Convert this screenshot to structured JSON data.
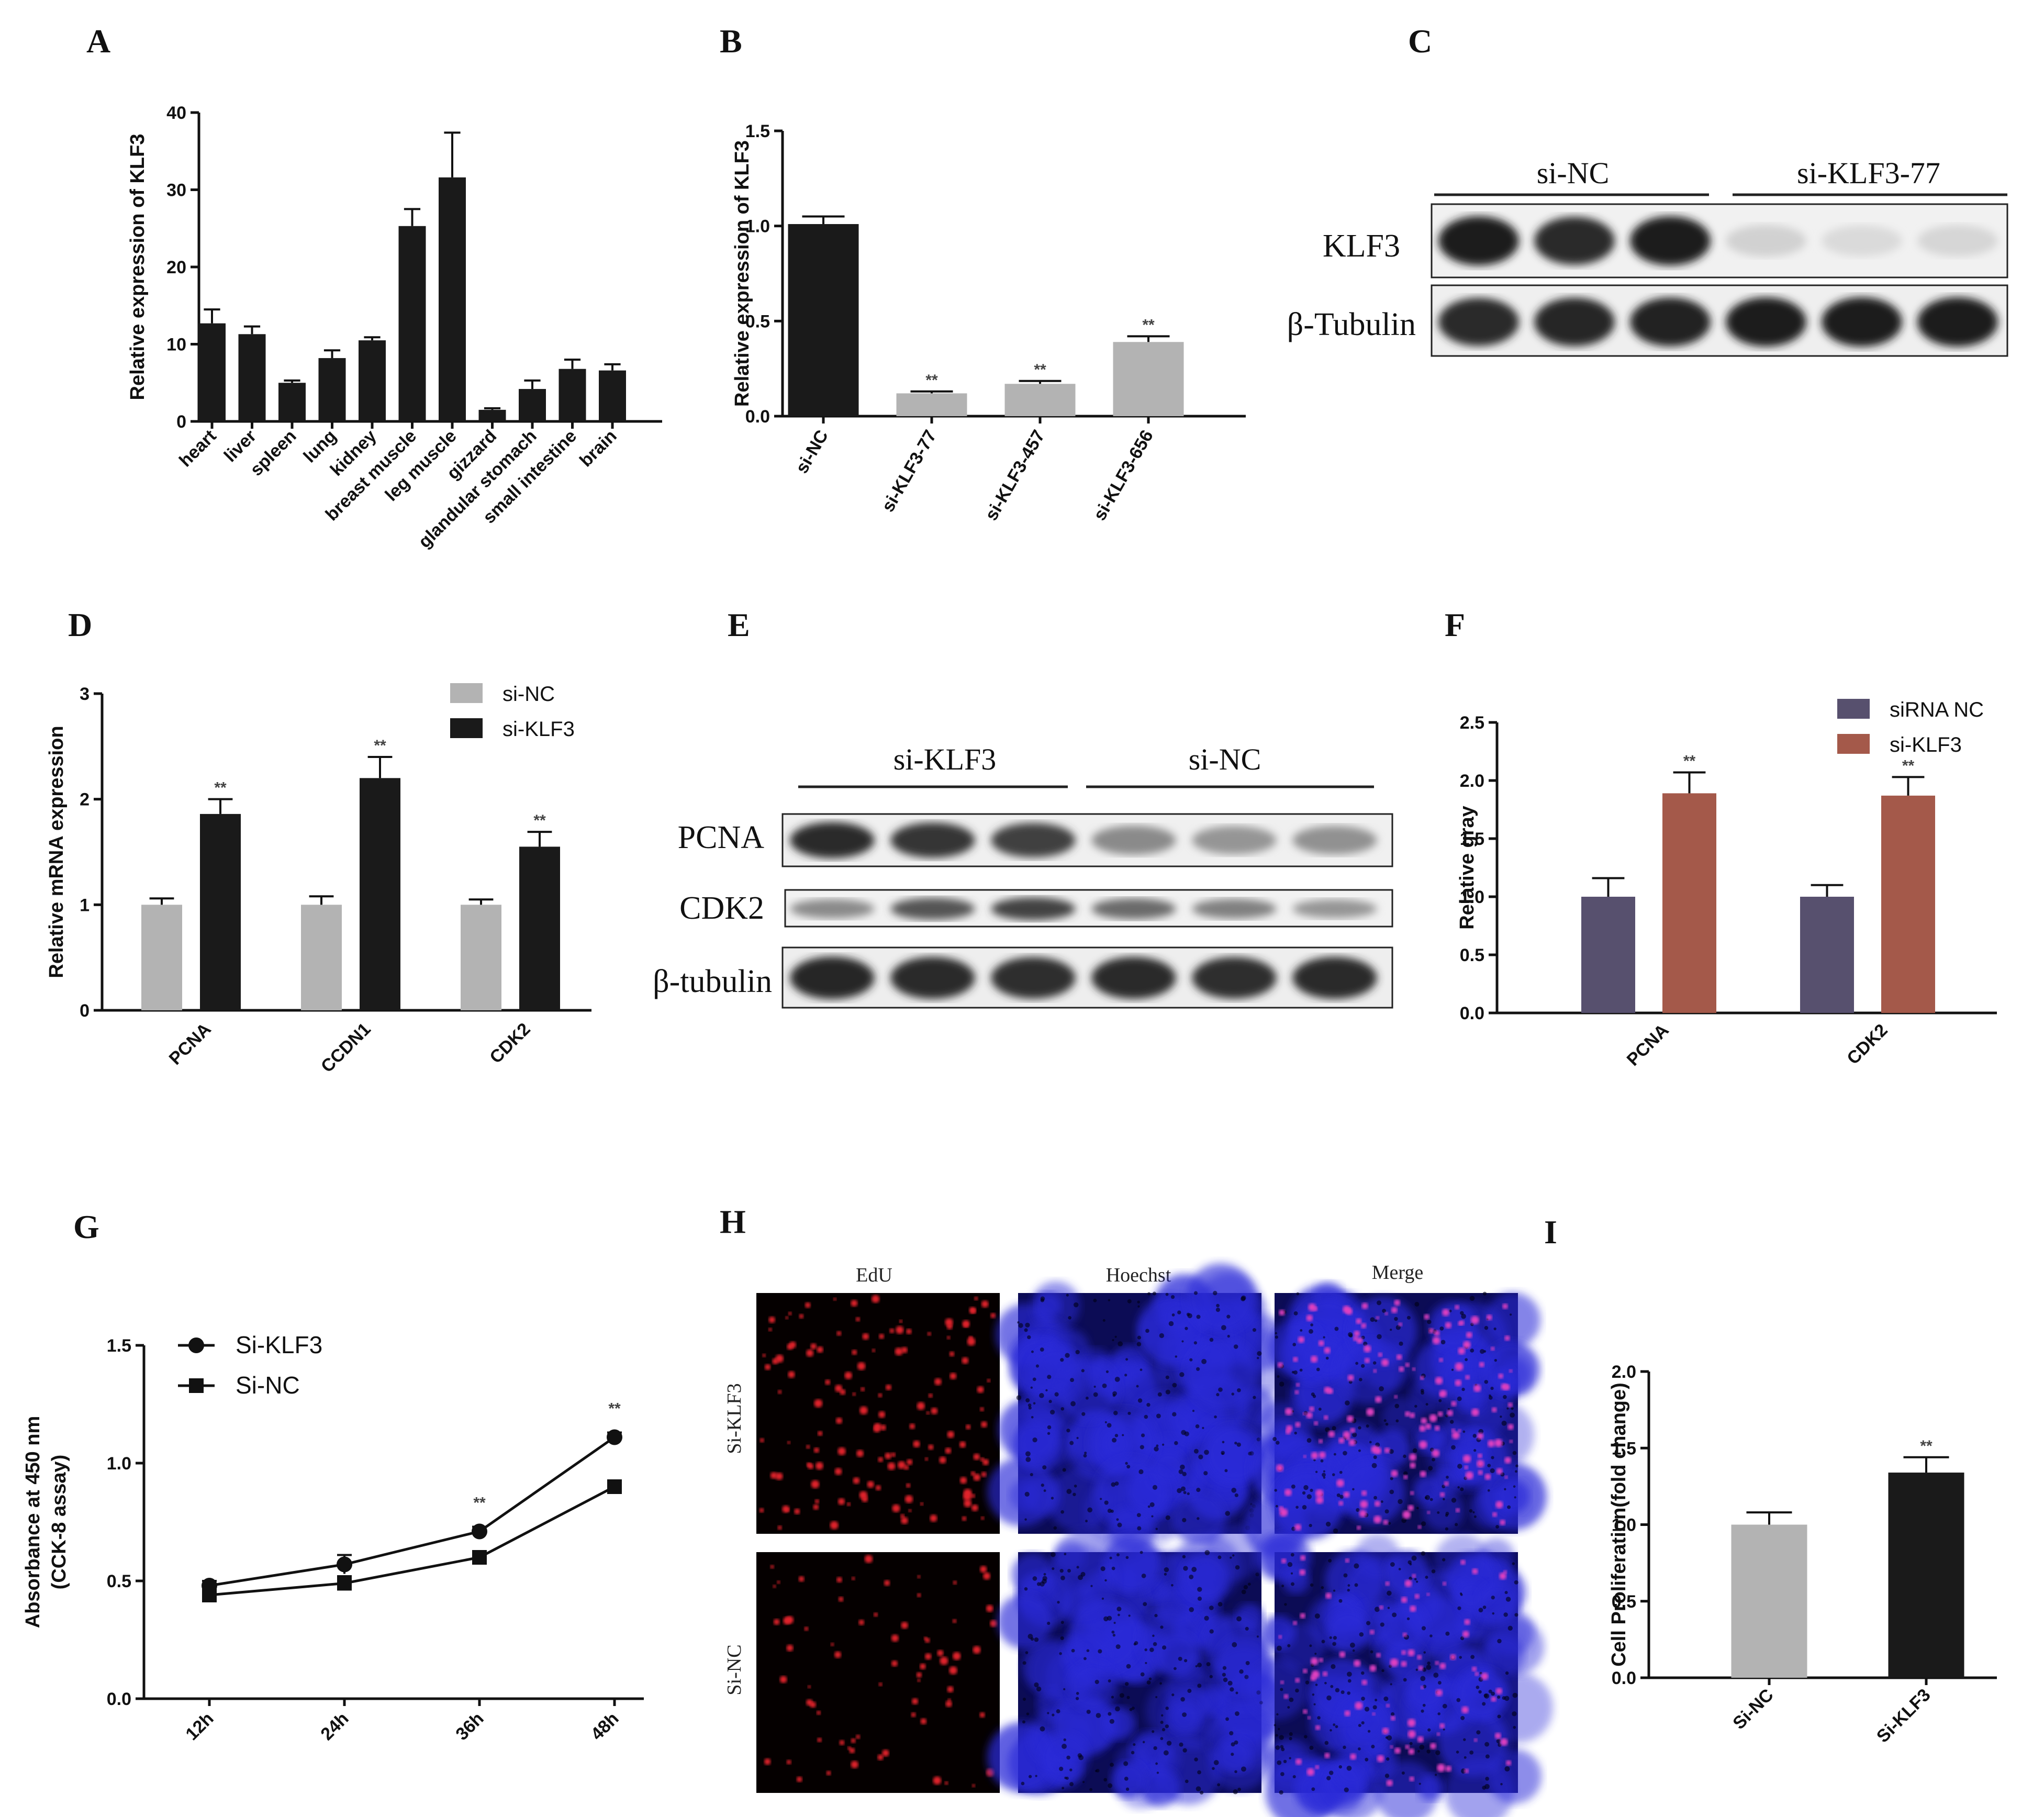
{
  "panels": {
    "A": "A",
    "B": "B",
    "C": "C",
    "D": "D",
    "E": "E",
    "F": "F",
    "G": "G",
    "H": "H",
    "I": "I"
  },
  "chart_data": [
    {
      "id": "A",
      "type": "bar",
      "ylabel": "Relative expression of KLF3",
      "ylim": [
        0,
        40
      ],
      "yticks": [
        "0",
        "10",
        "20",
        "30",
        "40"
      ],
      "categories": [
        "heart",
        "liver",
        "spleen",
        "lung",
        "kidney",
        "breast muscle",
        "leg muscle",
        "gizzard",
        "glandular stomach",
        "small intestine",
        "brain"
      ],
      "values": [
        12.7,
        11.3,
        5.0,
        8.2,
        10.5,
        25.3,
        31.6,
        1.5,
        4.2,
        6.8,
        6.6
      ],
      "errors": [
        1.8,
        1.0,
        0.3,
        1.0,
        0.4,
        2.2,
        5.8,
        0.2,
        1.1,
        1.2,
        0.8
      ],
      "color": "#1a1a1a"
    },
    {
      "id": "B",
      "type": "bar",
      "ylabel": "Relative expression of KLF3",
      "ylim": [
        0,
        1.5
      ],
      "yticks": [
        "0.0",
        "0.5",
        "1.0",
        "1.5"
      ],
      "categories": [
        "si-NC",
        "si-KLF3-77",
        "si-KLF3-457",
        "si-KLF3-656"
      ],
      "values": [
        1.01,
        0.12,
        0.17,
        0.39
      ],
      "errors": [
        0.04,
        0.01,
        0.015,
        0.03
      ],
      "sig": [
        "",
        "**",
        "**",
        "**"
      ],
      "colors": [
        "#1a1a1a",
        "#b3b3b3",
        "#b3b3b3",
        "#b3b3b3"
      ]
    },
    {
      "id": "D",
      "type": "bar",
      "ylabel": "Relative mRNA expression",
      "ylim": [
        0,
        3
      ],
      "yticks": [
        "0",
        "1",
        "2",
        "3"
      ],
      "categories": [
        "PCNA",
        "CCDN1",
        "CDK2"
      ],
      "legend_position": "top-right",
      "series": [
        {
          "name": "si-NC",
          "color": "#b3b3b3",
          "values": [
            1.0,
            1.0,
            1.0
          ],
          "errors": [
            0.06,
            0.08,
            0.05
          ],
          "sig": [
            "",
            "",
            ""
          ]
        },
        {
          "name": "si-KLF3",
          "color": "#1a1a1a",
          "values": [
            1.86,
            2.2,
            1.55
          ],
          "errors": [
            0.14,
            0.2,
            0.14
          ],
          "sig": [
            "**",
            "**",
            "**"
          ]
        }
      ]
    },
    {
      "id": "F",
      "type": "bar",
      "ylabel": "Relative gray",
      "ylim": [
        0,
        2.5
      ],
      "yticks": [
        "0.0",
        "0.5",
        "1.0",
        "1.5",
        "2.0",
        "2.5"
      ],
      "categories": [
        "PCNA",
        "CDK2"
      ],
      "legend_position": "top-right",
      "series": [
        {
          "name": "siRNA NC",
          "color": "#57506e",
          "values": [
            1.0,
            1.0
          ],
          "errors": [
            0.16,
            0.1
          ],
          "sig": [
            "",
            ""
          ]
        },
        {
          "name": "si-KLF3",
          "color": "#a4594a",
          "values": [
            1.89,
            1.87
          ],
          "errors": [
            0.18,
            0.16
          ],
          "sig": [
            "**",
            "**"
          ]
        }
      ]
    },
    {
      "id": "G",
      "type": "line",
      "ylabel": "Absorbance at 450 nm",
      "ylabel2": "(CCK-8 assay)",
      "ylim": [
        0,
        1.5
      ],
      "yticks": [
        "0.0",
        "0.5",
        "1.0",
        "1.5"
      ],
      "categories": [
        "12h",
        "24h",
        "36h",
        "48h"
      ],
      "legend_position": "top-left",
      "series": [
        {
          "name": "Si-KLF3",
          "marker": "circle",
          "values": [
            0.48,
            0.57,
            0.71,
            1.11
          ],
          "errors": [
            0.02,
            0.04,
            0.02,
            0.02
          ],
          "sig": [
            "",
            "",
            "**",
            "**"
          ]
        },
        {
          "name": "Si-NC",
          "marker": "square",
          "values": [
            0.44,
            0.49,
            0.6,
            0.9
          ],
          "errors": [
            0.02,
            0.03,
            0.02,
            0.02
          ],
          "sig": [
            "",
            "",
            "",
            ""
          ]
        }
      ]
    },
    {
      "id": "I",
      "type": "bar",
      "ylabel": "Cell Proliferation(fold change)",
      "ylim": [
        0,
        2.0
      ],
      "yticks": [
        "0.0",
        "0.5",
        "1.0",
        "1.5",
        "2.0"
      ],
      "categories": [
        "Si-NC",
        "Si-KLF3"
      ],
      "values": [
        1.0,
        1.34
      ],
      "errors": [
        0.08,
        0.1
      ],
      "sig": [
        "",
        "**"
      ],
      "colors": [
        "#b3b3b3",
        "#1a1a1a"
      ]
    }
  ],
  "blots": {
    "C": {
      "groups": [
        "si-NC",
        "si-KLF3-77"
      ],
      "rows": [
        "KLF3",
        "β-Tubulin"
      ],
      "intensity": [
        [
          0.95,
          0.9,
          0.95,
          0.12,
          0.08,
          0.1
        ],
        [
          0.9,
          0.92,
          0.93,
          0.95,
          0.96,
          0.96
        ]
      ]
    },
    "E": {
      "groups": [
        "si-KLF3",
        "si-NC"
      ],
      "rows": [
        "PCNA",
        "CDK2",
        "β-tubulin"
      ],
      "intensity": [
        [
          0.9,
          0.85,
          0.8,
          0.45,
          0.4,
          0.42
        ],
        [
          0.45,
          0.7,
          0.78,
          0.6,
          0.5,
          0.4
        ],
        [
          0.92,
          0.9,
          0.88,
          0.9,
          0.88,
          0.9
        ]
      ]
    }
  },
  "micrographs": {
    "columns": [
      "EdU",
      "Hoechst",
      "Merge"
    ],
    "rows": [
      "Si-KLF3",
      "Si-NC"
    ]
  },
  "colors": {
    "red": "#e0202a",
    "blue": "#2a2ad8"
  }
}
